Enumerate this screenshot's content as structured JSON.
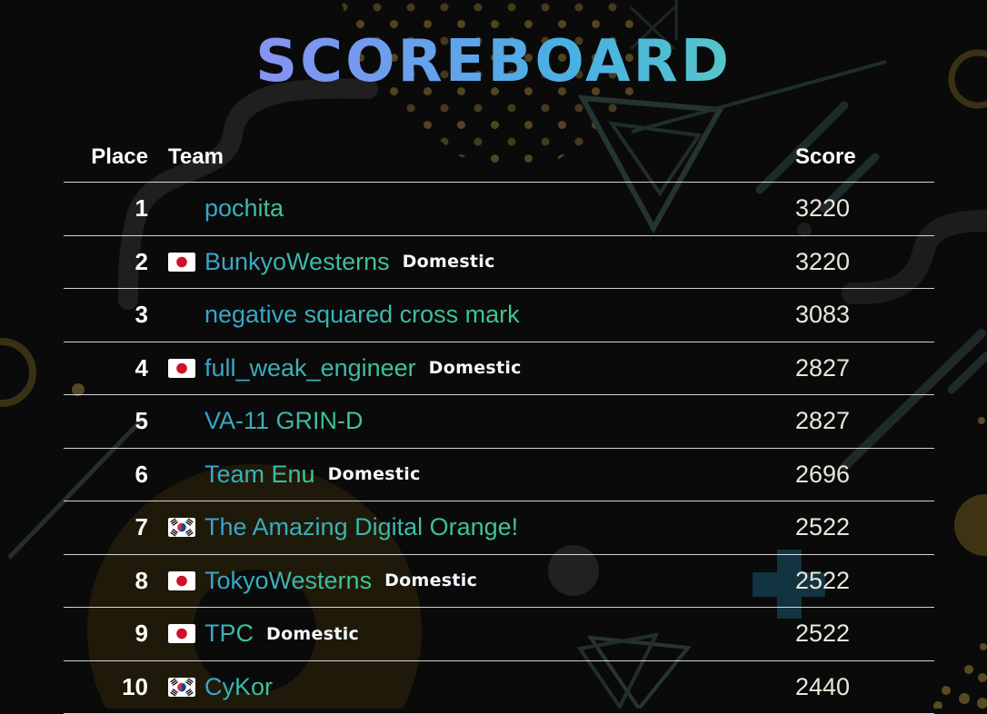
{
  "title": "SCOREBOARD",
  "colors": {
    "background": "#0a0a0a",
    "title_gradient": [
      "#b48cfa",
      "#8094f2",
      "#49b0e4",
      "#81e0ae"
    ],
    "team_link_gradient": [
      "#36a4d2",
      "#41c98c"
    ],
    "place_text": "#fffdf4",
    "score_text": "#ebe6da",
    "domestic_text": "#f3f9ff",
    "row_line": "#d1d1d1"
  },
  "table": {
    "headers": {
      "place": "Place",
      "team": "Team",
      "score": "Score"
    },
    "domestic_label": "Domestic",
    "rows": [
      {
        "place": "1",
        "team": "pochita",
        "flag": "",
        "domestic": false,
        "score": "3220"
      },
      {
        "place": "2",
        "team": "BunkyoWesterns",
        "flag": "japan",
        "domestic": true,
        "score": "3220"
      },
      {
        "place": "3",
        "team": "negative squared cross mark",
        "flag": "",
        "domestic": false,
        "score": "3083"
      },
      {
        "place": "4",
        "team": "full_weak_engineer",
        "flag": "japan",
        "domestic": true,
        "score": "2827"
      },
      {
        "place": "5",
        "team": "VA-11 GRIN-D",
        "flag": "",
        "domestic": false,
        "score": "2827"
      },
      {
        "place": "6",
        "team": "Team Enu",
        "flag": "",
        "domestic": true,
        "score": "2696"
      },
      {
        "place": "7",
        "team": "The Amazing Digital Orange!",
        "flag": "south-korea",
        "domestic": false,
        "score": "2522"
      },
      {
        "place": "8",
        "team": "TokyoWesterns",
        "flag": "japan",
        "domestic": true,
        "score": "2522"
      },
      {
        "place": "9",
        "team": "TPC",
        "flag": "japan",
        "domestic": true,
        "score": "2522"
      },
      {
        "place": "10",
        "team": "CyKor",
        "flag": "south-korea",
        "domestic": false,
        "score": "2440"
      }
    ]
  }
}
